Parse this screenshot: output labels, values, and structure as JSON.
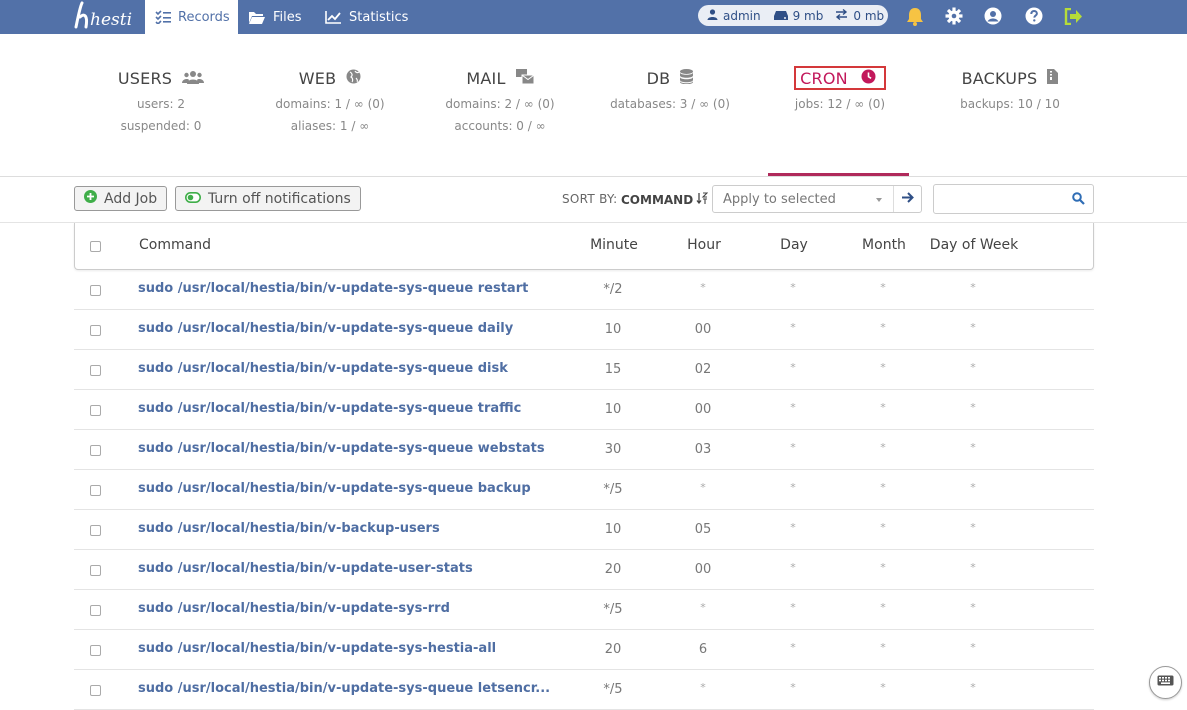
{
  "nav": {
    "logo": "hestia",
    "tabs": [
      {
        "label": "Records",
        "icon": "list-check-icon",
        "active": true
      },
      {
        "label": "Files",
        "icon": "folder-open-icon",
        "active": false
      },
      {
        "label": "Statistics",
        "icon": "chart-line-icon",
        "active": false
      }
    ],
    "user": {
      "name": "admin",
      "disk": "9 mb",
      "bandwidth": "0 mb"
    }
  },
  "stats": {
    "users": {
      "title": "USERS",
      "lines": [
        "users: 2",
        "suspended: 0"
      ]
    },
    "web": {
      "title": "WEB",
      "lines": [
        "domains: 1 / ∞ (0)",
        "aliases: 1 / ∞"
      ]
    },
    "mail": {
      "title": "MAIL",
      "lines": [
        "domains: 2 / ∞ (0)",
        "accounts: 0 / ∞"
      ]
    },
    "db": {
      "title": "DB",
      "lines": [
        "databases: 3 / ∞ (0)"
      ]
    },
    "cron": {
      "title": "CRON",
      "lines": [
        "jobs: 12 / ∞ (0)"
      ]
    },
    "backups": {
      "title": "BACKUPS",
      "lines": [
        "backups: 10 / 10"
      ]
    }
  },
  "toolbar": {
    "add_job": "Add Job",
    "notifications": "Turn off notifications",
    "sort_by_label": "SORT BY:",
    "sort_by_value": "COMMAND",
    "bulk_placeholder": "Apply to selected",
    "search_value": ""
  },
  "table": {
    "headers": {
      "command": "Command",
      "minute": "Minute",
      "hour": "Hour",
      "day": "Day",
      "month": "Month",
      "dow": "Day of Week"
    },
    "rows": [
      {
        "command": "sudo /usr/local/hestia/bin/v-update-sys-queue restart",
        "minute": "*/2",
        "hour": "*",
        "day": "*",
        "month": "*",
        "dow": "*"
      },
      {
        "command": "sudo /usr/local/hestia/bin/v-update-sys-queue daily",
        "minute": "10",
        "hour": "00",
        "day": "*",
        "month": "*",
        "dow": "*"
      },
      {
        "command": "sudo /usr/local/hestia/bin/v-update-sys-queue disk",
        "minute": "15",
        "hour": "02",
        "day": "*",
        "month": "*",
        "dow": "*"
      },
      {
        "command": "sudo /usr/local/hestia/bin/v-update-sys-queue traffic",
        "minute": "10",
        "hour": "00",
        "day": "*",
        "month": "*",
        "dow": "*"
      },
      {
        "command": "sudo /usr/local/hestia/bin/v-update-sys-queue webstats",
        "minute": "30",
        "hour": "03",
        "day": "*",
        "month": "*",
        "dow": "*"
      },
      {
        "command": "sudo /usr/local/hestia/bin/v-update-sys-queue backup",
        "minute": "*/5",
        "hour": "*",
        "day": "*",
        "month": "*",
        "dow": "*"
      },
      {
        "command": "sudo /usr/local/hestia/bin/v-backup-users",
        "minute": "10",
        "hour": "05",
        "day": "*",
        "month": "*",
        "dow": "*"
      },
      {
        "command": "sudo /usr/local/hestia/bin/v-update-user-stats",
        "minute": "20",
        "hour": "00",
        "day": "*",
        "month": "*",
        "dow": "*"
      },
      {
        "command": "sudo /usr/local/hestia/bin/v-update-sys-rrd",
        "minute": "*/5",
        "hour": "*",
        "day": "*",
        "month": "*",
        "dow": "*"
      },
      {
        "command": "sudo /usr/local/hestia/bin/v-update-sys-hestia-all",
        "minute": "20",
        "hour": "6",
        "day": "*",
        "month": "*",
        "dow": "*"
      },
      {
        "command": "sudo /usr/local/hestia/bin/v-update-sys-queue letsencr...",
        "minute": "*/5",
        "hour": "*",
        "day": "*",
        "month": "*",
        "dow": "*"
      }
    ]
  },
  "colors": {
    "topbar": "#5271a8",
    "accent": "#b02a5b",
    "link": "#4f6ea3"
  }
}
